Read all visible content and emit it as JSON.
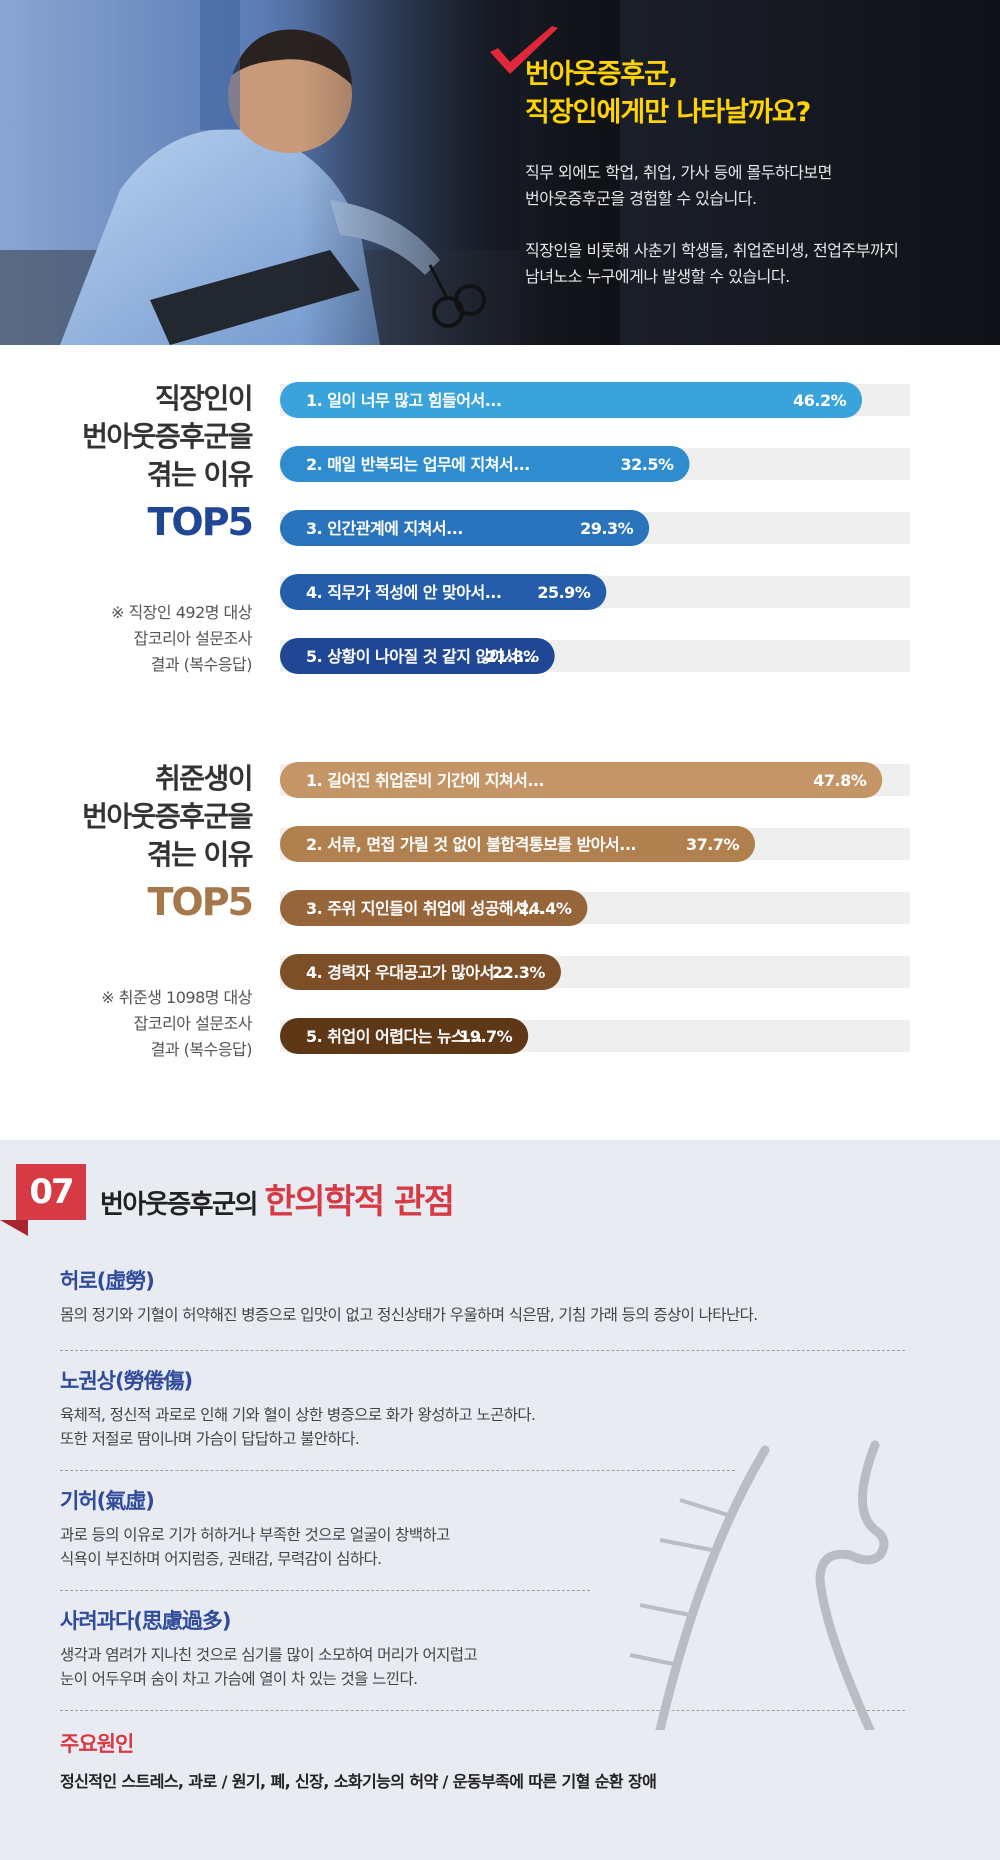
{
  "hero": {
    "title_line1": "번아웃증후군,",
    "title_line2": "직장인에게만 나타날까요?",
    "text_line1": "직무 외에도 학업, 취업, 가사 등에 몰두하다보면",
    "text_line2": "번아웃증후군을 경험할 수 있습니다.",
    "text_line3": "직장인을 비롯해 사춘기 학생들, 취업준비생, 전업주부까지",
    "text_line4": "남녀노소 누구에게나 발생할 수 있습니다."
  },
  "survey_workers": {
    "title_line1": "직장인이",
    "title_line2": "번아웃증후군을",
    "title_line3": "겪는 이유",
    "top5": "TOP5",
    "note_line1": "※ 직장인 492명 대상",
    "note_line2": "잡코리아 설문조사",
    "note_line3": "결과 (복수응답)"
  },
  "survey_seekers": {
    "title_line1": "취준생이",
    "title_line2": "번아웃증후군을",
    "title_line3": "겪는 이유",
    "top5": "TOP5",
    "note_line1": "※ 취준생 1098명 대상",
    "note_line2": "잡코리아 설문조사",
    "note_line3": "결과 (복수응답)"
  },
  "chart_data": [
    {
      "type": "bar",
      "orientation": "horizontal",
      "title": "",
      "categories": [
        "1. 일이 너무 많고 힘들어서...",
        "2. 매일 반복되는 업무에 지쳐서...",
        "3. 인간관계에 지쳐서...",
        "4. 직무가 적성에 안 맞아서...",
        "5. 상황이 나아질 것 같지 않아서..."
      ],
      "values": [
        46.2,
        32.5,
        29.3,
        25.9,
        21.8
      ],
      "value_labels": [
        "46.2%",
        "32.5%",
        "29.3%",
        "25.9%",
        "21.8%"
      ],
      "unit": "%",
      "xlim": [
        0,
        50
      ],
      "colors": [
        "#3aa3db",
        "#2f8cce",
        "#2a74be",
        "#255dab",
        "#1f4794"
      ],
      "track_color": "#efefef"
    },
    {
      "type": "bar",
      "orientation": "horizontal",
      "title": "",
      "categories": [
        "1. 길어진 취업준비 기간에 지쳐서...",
        "2. 서류, 면접 가릴 것 없이 불합격통보를 받아서...",
        "3. 주위 지인들이 취업에 성공해서...",
        "4. 경력자 우대공고가 많아서...",
        "5. 취업이 어렵다는 뉴스..."
      ],
      "values": [
        47.8,
        37.7,
        24.4,
        22.3,
        19.7
      ],
      "value_labels": [
        "47.8%",
        "37.7%",
        "24.4%",
        "22.3%",
        "19.7%"
      ],
      "unit": "%",
      "xlim": [
        0,
        50
      ],
      "colors": [
        "#c49667",
        "#b0804f",
        "#97653a",
        "#7d4f28",
        "#5e3716"
      ],
      "track_color": "#efefef"
    }
  ],
  "colors": {
    "top5_workers": "#1f4794",
    "top5_seekers": "#a5784b",
    "accent_red": "#d63b45",
    "term_blue": "#2f4b9a",
    "hero_yellow": "#ffd400"
  },
  "oriental": {
    "number": "07",
    "heading_prefix": "번아웃증후군의 ",
    "heading_highlight": "한의학적 관점",
    "terms": [
      {
        "title": "허로(虛勞)",
        "lines": [
          "몸의 정기와 기혈이 허약해진 병증으로 입맛이 없고 정신상태가 우울하며 식은땀, 기침 가래 등의 증상이 나타난다."
        ]
      },
      {
        "title": "노권상(勞倦傷)",
        "lines": [
          "육체적, 정신적 과로로 인해 기와 혈이 상한 병증으로 화가 왕성하고 노곤하다.",
          "또한 저절로 땀이나며 가슴이 답답하고 불안하다."
        ]
      },
      {
        "title": "기허(氣虛)",
        "lines": [
          "과로 등의 이유로 기가 허하거나 부족한 것으로 얼굴이 창백하고",
          "식욕이 부진하며 어지럼증, 권태감, 무력감이 심하다."
        ]
      },
      {
        "title": "사려과다(思慮過多)",
        "lines": [
          "생각과 염려가 지나친 것으로 심기를 많이 소모하여 머리가 어지럽고",
          "눈이 어두우며 숨이 차고 가슴에 열이 차 있는 것을 느낀다."
        ]
      }
    ],
    "cause_title": "주요원인",
    "cause_text": "정신적인 스트레스, 과로 / 원기, 폐, 신장, 소화기능의 허약 / 운동부족에 따른 기혈 순환 장애"
  }
}
